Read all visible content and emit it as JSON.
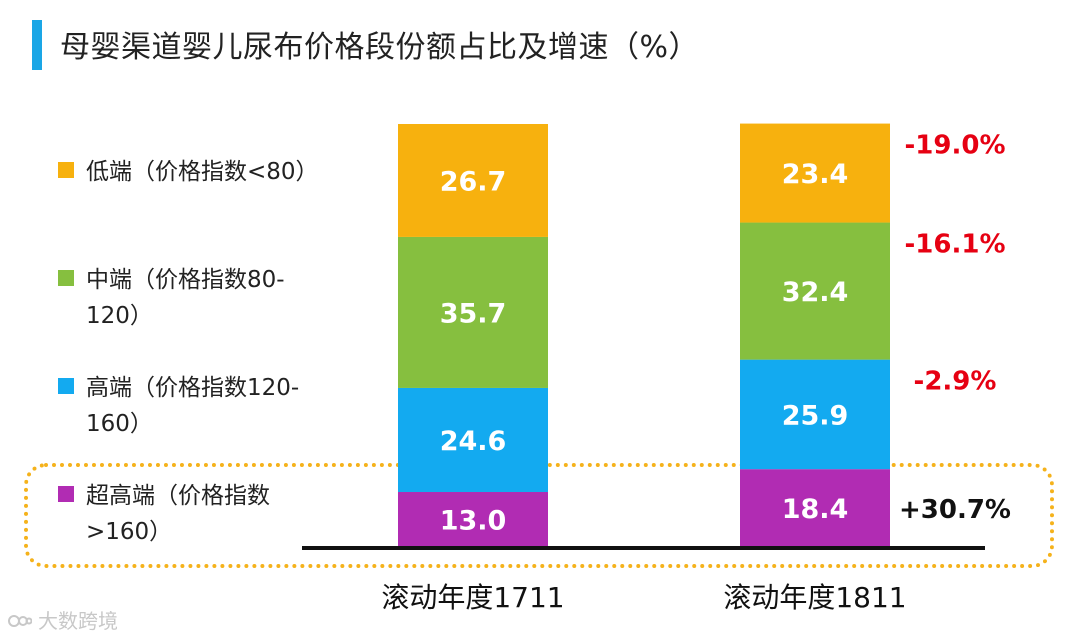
{
  "title": "母婴渠道婴儿尿布价格段份额占比及增速（%）",
  "watermark": "大数跨境",
  "chart_data": {
    "type": "bar",
    "stacked": true,
    "categories": [
      "滚动年度1711",
      "滚动年度1811"
    ],
    "series": [
      {
        "name": "超高端（价格指数>160）",
        "color": "#b12cb3",
        "values": [
          13.0,
          18.4
        ]
      },
      {
        "name": "高端（价格指数120-160）",
        "color": "#13aaf0",
        "values": [
          24.6,
          25.9
        ]
      },
      {
        "name": "中端（价格指数80-120）",
        "color": "#86bf3f",
        "values": [
          35.7,
          32.4
        ]
      },
      {
        "name": "低端（价格指数<80）",
        "color": "#f7b10e",
        "values": [
          26.7,
          23.4
        ]
      }
    ],
    "growth_labels": [
      {
        "series": "低端（价格指数<80）",
        "text": "-19.0%",
        "color": "#e60012"
      },
      {
        "series": "中端（价格指数80-120）",
        "text": "-16.1%",
        "color": "#e60012"
      },
      {
        "series": "高端（价格指数120-160）",
        "text": "-2.9%",
        "color": "#e60012"
      },
      {
        "series": "超高端（价格指数>160）",
        "text": "+30.7%",
        "color": "#111111"
      }
    ],
    "ylim": [
      0,
      100
    ],
    "grid": false,
    "legend_position": "left"
  },
  "legend": [
    {
      "text": "低端（价格指数<80）",
      "color": "#f7b10e"
    },
    {
      "text": "中端（价格指数80-\n120）",
      "color": "#86bf3f"
    },
    {
      "text": "高端（价格指数120-\n160）",
      "color": "#13aaf0"
    },
    {
      "text": "超高端（价格指数\n>160）",
      "color": "#b12cb3"
    }
  ]
}
